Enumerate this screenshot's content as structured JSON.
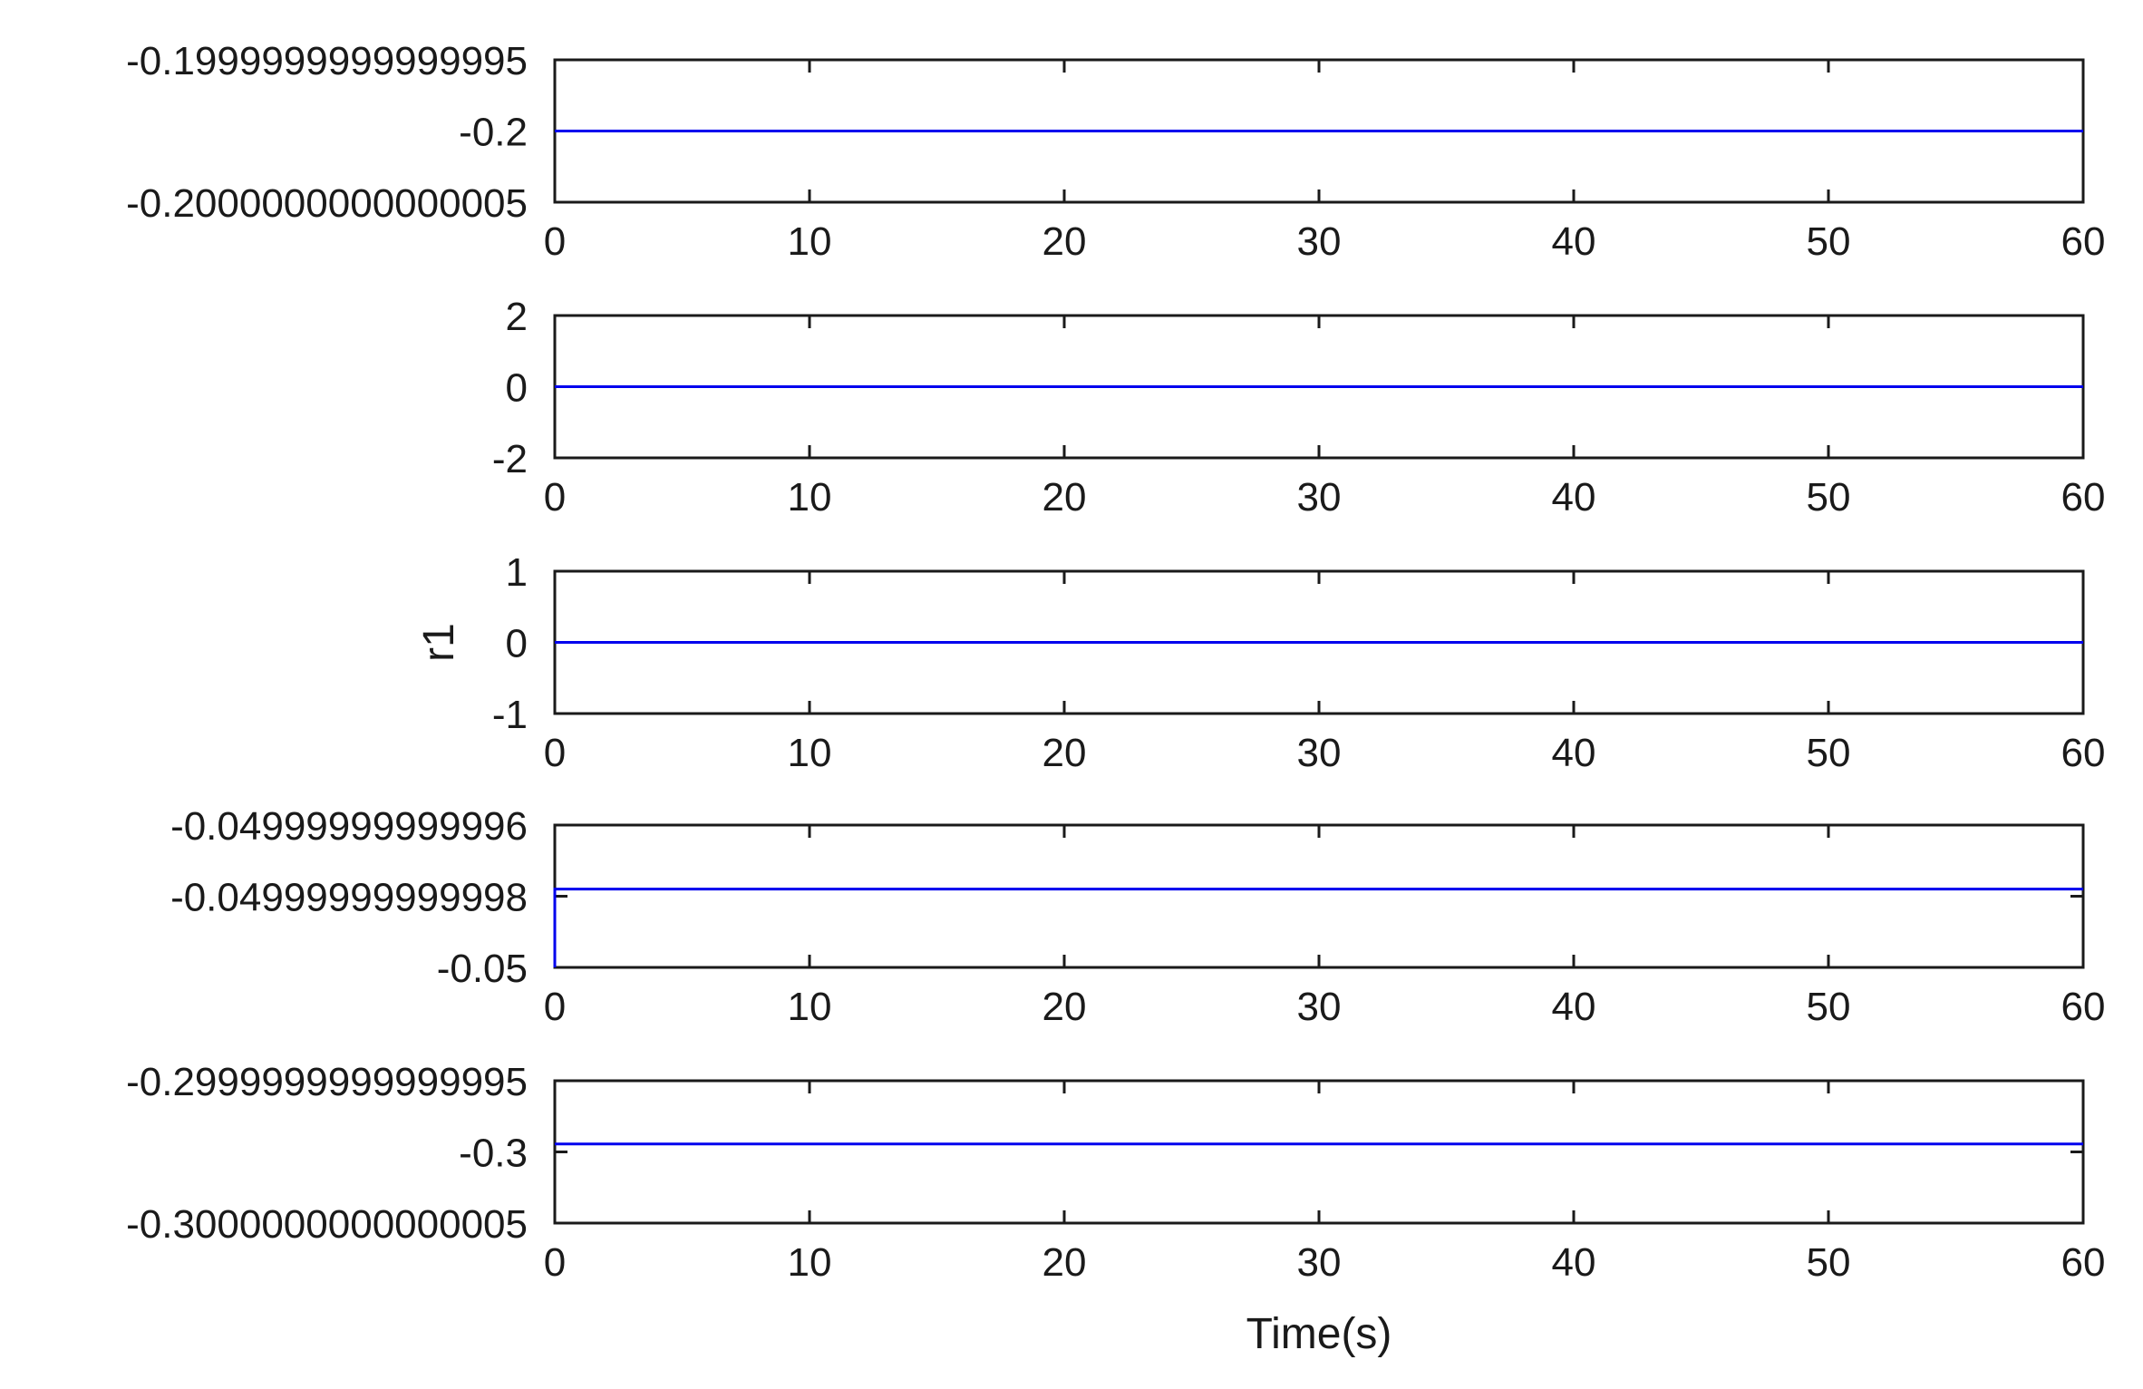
{
  "chart_data": [
    {
      "type": "line",
      "xlim": [
        0,
        60
      ],
      "x_ticks": [
        "0",
        "10",
        "20",
        "30",
        "40",
        "50",
        "60"
      ],
      "ylim": [
        -0.2000000000000005,
        -0.1999999999999995
      ],
      "y_ticks": [
        {
          "value": -0.1999999999999995,
          "label": "-0.1999999999999995"
        },
        {
          "value": -0.2,
          "label": "-0.2"
        },
        {
          "value": -0.2000000000000005,
          "label": "-0.2000000000000005"
        }
      ],
      "ylabel": "",
      "xlabel": "",
      "series": [
        {
          "x": [
            0,
            60
          ],
          "y": [
            -0.2,
            -0.2
          ]
        }
      ]
    },
    {
      "type": "line",
      "xlim": [
        0,
        60
      ],
      "x_ticks": [
        "0",
        "10",
        "20",
        "30",
        "40",
        "50",
        "60"
      ],
      "ylim": [
        -2,
        2
      ],
      "y_ticks": [
        {
          "value": 2,
          "label": "2"
        },
        {
          "value": 0,
          "label": "0"
        },
        {
          "value": -2,
          "label": "-2"
        }
      ],
      "ylabel": "",
      "xlabel": "",
      "series": [
        {
          "x": [
            0,
            60
          ],
          "y": [
            0,
            0
          ]
        }
      ]
    },
    {
      "type": "line",
      "xlim": [
        0,
        60
      ],
      "x_ticks": [
        "0",
        "10",
        "20",
        "30",
        "40",
        "50",
        "60"
      ],
      "ylim": [
        -1,
        1
      ],
      "y_ticks": [
        {
          "value": 1,
          "label": "1"
        },
        {
          "value": 0,
          "label": "0"
        },
        {
          "value": -1,
          "label": "-1"
        }
      ],
      "ylabel": "r1",
      "xlabel": "",
      "series": [
        {
          "x": [
            0,
            60
          ],
          "y": [
            0,
            0
          ]
        }
      ]
    },
    {
      "type": "line",
      "xlim": [
        0,
        60
      ],
      "x_ticks": [
        "0",
        "10",
        "20",
        "30",
        "40",
        "50",
        "60"
      ],
      "ylim": [
        -0.05,
        -0.04999999999996
      ],
      "y_ticks": [
        {
          "value": -0.04999999999996,
          "label": "-0.04999999999996"
        },
        {
          "value": -0.04999999999998,
          "label": "-0.04999999999998"
        },
        {
          "value": -0.05,
          "label": "-0.05"
        }
      ],
      "ylabel": "",
      "xlabel": "",
      "series": [
        {
          "x": [
            0,
            0,
            60
          ],
          "y": [
            -0.05,
            -0.049999999999978,
            -0.049999999999978
          ]
        }
      ]
    },
    {
      "type": "line",
      "xlim": [
        0,
        60
      ],
      "x_ticks": [
        "0",
        "10",
        "20",
        "30",
        "40",
        "50",
        "60"
      ],
      "ylim": [
        -0.3000000000000005,
        -0.2999999999999995
      ],
      "y_ticks": [
        {
          "value": -0.2999999999999995,
          "label": "-0.2999999999999995"
        },
        {
          "value": -0.3,
          "label": "-0.3"
        },
        {
          "value": -0.3000000000000005,
          "label": "-0.3000000000000005"
        }
      ],
      "ylabel": "",
      "xlabel": "Time(s)",
      "series": [
        {
          "x": [
            0,
            60
          ],
          "y": [
            -0.29999999999999993,
            -0.29999999999999993
          ]
        }
      ]
    }
  ],
  "colors": {
    "line": "#0000ee",
    "axis": "#1a1a1a"
  }
}
